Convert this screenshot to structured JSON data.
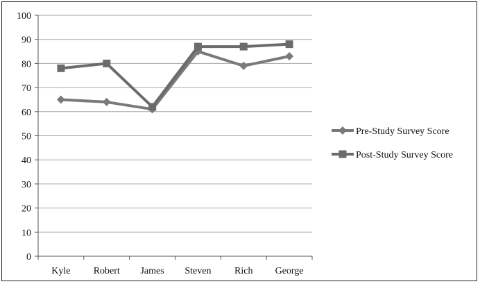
{
  "chart_data": {
    "type": "line",
    "title": "",
    "xlabel": "",
    "ylabel": "",
    "categories": [
      "Kyle",
      "Robert",
      "James",
      "Steven",
      "Rich",
      "George"
    ],
    "ylim": [
      0,
      100
    ],
    "yticks": [
      0,
      10,
      20,
      30,
      40,
      50,
      60,
      70,
      80,
      90,
      100
    ],
    "grid": true,
    "legend_position": "right",
    "series": [
      {
        "name": "Pre-Study Survey Score",
        "marker": "diamond",
        "color": "#7a7a7a",
        "values": [
          65,
          64,
          61,
          85,
          79,
          83
        ]
      },
      {
        "name": "Post-Study Survey Score",
        "marker": "square",
        "color": "#6b6b6b",
        "values": [
          78,
          80,
          62,
          87,
          87,
          88
        ]
      }
    ]
  }
}
